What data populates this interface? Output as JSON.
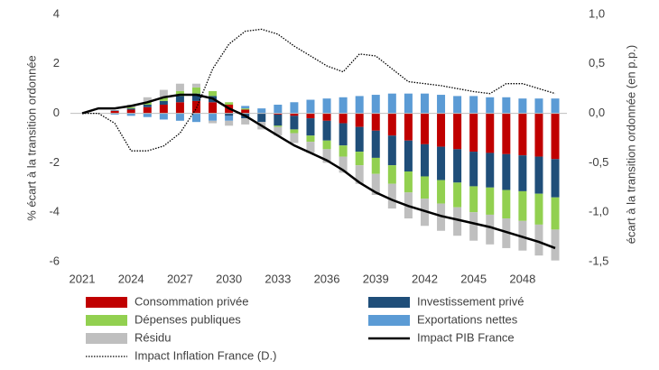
{
  "chart_data": {
    "type": "bar",
    "categories": [
      "2021",
      null,
      null,
      "2024",
      null,
      null,
      "2027",
      null,
      null,
      "2030",
      null,
      null,
      "2033",
      null,
      null,
      "2036",
      null,
      null,
      "2039",
      null,
      null,
      "2042",
      null,
      null,
      "2045",
      null,
      null,
      "2048",
      null,
      null
    ],
    "y_label": "% écart à la transition ordonnée",
    "y2_label": "écart à la transition ordonnée (en p.p.)",
    "ylim": [
      -6,
      4
    ],
    "yticks": [
      -6,
      -4,
      -2,
      0,
      2,
      4
    ],
    "y2lim": [
      -1.5,
      1
    ],
    "y2ticks": [
      {
        "value": -1.5,
        "label": "-1,5"
      },
      {
        "value": -1,
        "label": "-1,0"
      },
      {
        "value": -0.5,
        "label": "-0,5"
      },
      {
        "value": 0,
        "label": "0,0"
      },
      {
        "value": 0.5,
        "label": "0,5"
      },
      {
        "value": 1,
        "label": "1,0"
      }
    ],
    "stacked": true,
    "series": [
      {
        "name": "Consommation privée",
        "type": "bar",
        "color": "#c00000",
        "values": [
          0,
          0,
          0.1,
          0.15,
          0.25,
          0.35,
          0.45,
          0.5,
          0.45,
          0.35,
          0.15,
          0,
          -0.05,
          -0.1,
          -0.2,
          -0.3,
          -0.4,
          -0.55,
          -0.7,
          -0.9,
          -1.1,
          -1.25,
          -1.35,
          -1.45,
          -1.55,
          -1.6,
          -1.65,
          -1.7,
          -1.75,
          -1.85
        ]
      },
      {
        "name": "Investissement privé",
        "type": "bar",
        "color": "#1f4e79",
        "values": [
          0,
          0,
          0.02,
          0.05,
          0.1,
          0.15,
          0.25,
          0.3,
          0.25,
          -0.1,
          -0.2,
          -0.35,
          -0.45,
          -0.55,
          -0.7,
          -0.8,
          -0.9,
          -1.0,
          -1.1,
          -1.2,
          -1.25,
          -1.3,
          -1.35,
          -1.35,
          -1.4,
          -1.4,
          -1.45,
          -1.45,
          -1.5,
          -1.55
        ]
      },
      {
        "name": "Dépenses publiques",
        "type": "bar",
        "color": "#92d050",
        "values": [
          0,
          0,
          0,
          0.05,
          0.1,
          0.15,
          0.2,
          0.25,
          0.2,
          0.1,
          0.05,
          0,
          -0.05,
          -0.15,
          -0.25,
          -0.35,
          -0.45,
          -0.55,
          -0.65,
          -0.75,
          -0.85,
          -0.9,
          -0.95,
          -1.0,
          -1.05,
          -1.1,
          -1.15,
          -1.2,
          -1.25,
          -1.3
        ]
      },
      {
        "name": "Exportations nettes",
        "type": "bar",
        "color": "#5b9bd5",
        "values": [
          0,
          0,
          -0.05,
          -0.1,
          -0.15,
          -0.25,
          -0.3,
          -0.35,
          -0.3,
          -0.2,
          0.1,
          0.2,
          0.35,
          0.45,
          0.55,
          0.6,
          0.65,
          0.7,
          0.75,
          0.8,
          0.8,
          0.8,
          0.75,
          0.7,
          0.7,
          0.65,
          0.65,
          0.6,
          0.6,
          0.6
        ]
      },
      {
        "name": "Résidu",
        "type": "bar",
        "color": "#bfbfbf",
        "values": [
          0,
          0,
          0,
          0.1,
          0.2,
          0.3,
          0.3,
          0.15,
          -0.1,
          -0.2,
          -0.25,
          -0.3,
          -0.35,
          -0.4,
          -0.45,
          -0.55,
          -0.65,
          -0.75,
          -0.85,
          -1.0,
          -1.05,
          -1.1,
          -1.1,
          -1.15,
          -1.15,
          -1.2,
          -1.2,
          -1.2,
          -1.25,
          -1.25
        ]
      },
      {
        "name": "Impact PIB France",
        "type": "line",
        "color": "#000000",
        "values": [
          0,
          0.2,
          0.2,
          0.3,
          0.45,
          0.65,
          0.75,
          0.75,
          0.6,
          0.2,
          -0.1,
          -0.5,
          -0.9,
          -1.3,
          -1.6,
          -1.9,
          -2.3,
          -2.8,
          -3.2,
          -3.5,
          -3.75,
          -3.95,
          -4.15,
          -4.3,
          -4.45,
          -4.6,
          -4.8,
          -5.0,
          -5.2,
          -5.45
        ]
      },
      {
        "name": "Impact Inflation France (D.)",
        "type": "line",
        "dash": "dotted",
        "axis": "y2",
        "color": "#000000",
        "values": [
          0,
          0,
          -0.1,
          -0.38,
          -0.38,
          -0.33,
          -0.2,
          0.05,
          0.45,
          0.7,
          0.83,
          0.85,
          0.8,
          0.68,
          0.58,
          0.48,
          0.42,
          0.6,
          0.58,
          0.45,
          0.32,
          0.3,
          0.28,
          0.25,
          0.22,
          0.2,
          0.3,
          0.3,
          0.25,
          0.2
        ]
      }
    ]
  }
}
